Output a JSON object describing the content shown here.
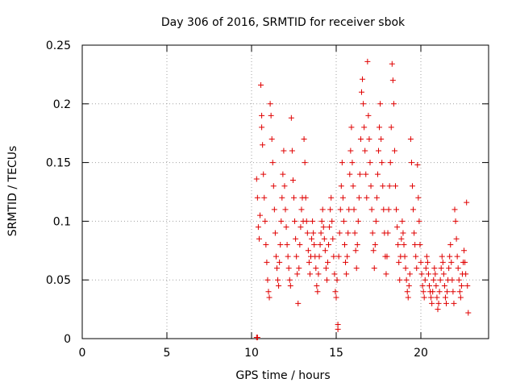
{
  "chart_data": {
    "type": "scatter",
    "title": "Day 306 of 2016, SRMTID for receiver sbok",
    "xlabel": "GPS time / hours",
    "ylabel": "SRMTID / TECUs",
    "xlim": [
      0,
      24
    ],
    "ylim": [
      0,
      0.25
    ],
    "xticks": [
      0,
      5,
      10,
      15,
      20
    ],
    "xtick_labels": [
      "0",
      "5",
      "10",
      "15",
      "20"
    ],
    "yticks": [
      0,
      0.05,
      0.1,
      0.15,
      0.2,
      0.25
    ],
    "ytick_labels": [
      "0",
      "0.05",
      "0.1",
      "0.15",
      "0.2",
      "0.25"
    ],
    "grid": true,
    "marker": "plus",
    "color": "#e00000",
    "series": [
      {
        "name": "SRMTID",
        "points": [
          [
            10.3,
            0.001
          ],
          [
            10.35,
            0.001
          ],
          [
            10.3,
            0.136
          ],
          [
            10.35,
            0.12
          ],
          [
            10.4,
            0.095
          ],
          [
            10.45,
            0.085
          ],
          [
            10.5,
            0.105
          ],
          [
            10.55,
            0.216
          ],
          [
            10.6,
            0.19
          ],
          [
            10.6,
            0.18
          ],
          [
            10.65,
            0.165
          ],
          [
            10.7,
            0.14
          ],
          [
            10.75,
            0.12
          ],
          [
            10.8,
            0.1
          ],
          [
            10.85,
            0.08
          ],
          [
            10.9,
            0.065
          ],
          [
            10.95,
            0.05
          ],
          [
            11.0,
            0.04
          ],
          [
            11.05,
            0.035
          ],
          [
            11.1,
            0.2
          ],
          [
            11.15,
            0.19
          ],
          [
            11.2,
            0.17
          ],
          [
            11.25,
            0.15
          ],
          [
            11.3,
            0.13
          ],
          [
            11.35,
            0.11
          ],
          [
            11.4,
            0.09
          ],
          [
            11.45,
            0.07
          ],
          [
            11.5,
            0.06
          ],
          [
            11.55,
            0.05
          ],
          [
            11.6,
            0.045
          ],
          [
            11.65,
            0.065
          ],
          [
            11.7,
            0.08
          ],
          [
            11.75,
            0.1
          ],
          [
            11.8,
            0.12
          ],
          [
            11.85,
            0.14
          ],
          [
            11.9,
            0.16
          ],
          [
            11.95,
            0.13
          ],
          [
            12.0,
            0.11
          ],
          [
            12.05,
            0.095
          ],
          [
            12.1,
            0.08
          ],
          [
            12.15,
            0.07
          ],
          [
            12.2,
            0.06
          ],
          [
            12.25,
            0.05
          ],
          [
            12.3,
            0.045
          ],
          [
            12.35,
            0.188
          ],
          [
            12.4,
            0.16
          ],
          [
            12.45,
            0.135
          ],
          [
            12.5,
            0.12
          ],
          [
            12.55,
            0.1
          ],
          [
            12.6,
            0.085
          ],
          [
            12.65,
            0.07
          ],
          [
            12.7,
            0.055
          ],
          [
            12.75,
            0.03
          ],
          [
            12.8,
            0.06
          ],
          [
            12.85,
            0.08
          ],
          [
            12.9,
            0.095
          ],
          [
            12.95,
            0.11
          ],
          [
            13.0,
            0.12
          ],
          [
            13.05,
            0.1
          ],
          [
            13.1,
            0.17
          ],
          [
            13.15,
            0.15
          ],
          [
            13.2,
            0.12
          ],
          [
            13.25,
            0.1
          ],
          [
            13.3,
            0.09
          ],
          [
            13.35,
            0.075
          ],
          [
            13.4,
            0.065
          ],
          [
            13.45,
            0.055
          ],
          [
            13.5,
            0.07
          ],
          [
            13.55,
            0.085
          ],
          [
            13.6,
            0.1
          ],
          [
            13.65,
            0.09
          ],
          [
            13.7,
            0.08
          ],
          [
            13.75,
            0.07
          ],
          [
            13.8,
            0.06
          ],
          [
            13.85,
            0.045
          ],
          [
            13.9,
            0.04
          ],
          [
            13.95,
            0.055
          ],
          [
            14.0,
            0.07
          ],
          [
            14.05,
            0.08
          ],
          [
            14.1,
            0.09
          ],
          [
            14.15,
            0.1
          ],
          [
            14.2,
            0.11
          ],
          [
            14.25,
            0.095
          ],
          [
            14.3,
            0.085
          ],
          [
            14.35,
            0.075
          ],
          [
            14.4,
            0.06
          ],
          [
            14.45,
            0.05
          ],
          [
            14.5,
            0.065
          ],
          [
            14.55,
            0.08
          ],
          [
            14.6,
            0.095
          ],
          [
            14.65,
            0.11
          ],
          [
            14.7,
            0.12
          ],
          [
            14.75,
            0.1
          ],
          [
            14.8,
            0.085
          ],
          [
            14.85,
            0.07
          ],
          [
            14.9,
            0.055
          ],
          [
            14.95,
            0.04
          ],
          [
            15.0,
            0.035
          ],
          [
            15.05,
            0.05
          ],
          [
            15.1,
            0.012
          ],
          [
            15.1,
            0.008
          ],
          [
            15.15,
            0.07
          ],
          [
            15.2,
            0.09
          ],
          [
            15.25,
            0.11
          ],
          [
            15.3,
            0.13
          ],
          [
            15.35,
            0.15
          ],
          [
            15.4,
            0.12
          ],
          [
            15.45,
            0.1
          ],
          [
            15.5,
            0.08
          ],
          [
            15.55,
            0.065
          ],
          [
            15.6,
            0.055
          ],
          [
            15.65,
            0.07
          ],
          [
            15.7,
            0.09
          ],
          [
            15.75,
            0.11
          ],
          [
            15.8,
            0.14
          ],
          [
            15.85,
            0.16
          ],
          [
            15.9,
            0.18
          ],
          [
            15.95,
            0.15
          ],
          [
            16.0,
            0.13
          ],
          [
            16.05,
            0.11
          ],
          [
            16.1,
            0.09
          ],
          [
            16.15,
            0.075
          ],
          [
            16.2,
            0.06
          ],
          [
            16.25,
            0.08
          ],
          [
            16.3,
            0.1
          ],
          [
            16.35,
            0.12
          ],
          [
            16.4,
            0.14
          ],
          [
            16.45,
            0.17
          ],
          [
            16.5,
            0.21
          ],
          [
            16.55,
            0.221
          ],
          [
            16.6,
            0.2
          ],
          [
            16.65,
            0.18
          ],
          [
            16.7,
            0.16
          ],
          [
            16.75,
            0.14
          ],
          [
            16.8,
            0.12
          ],
          [
            16.85,
            0.236
          ],
          [
            16.9,
            0.19
          ],
          [
            16.95,
            0.17
          ],
          [
            17.0,
            0.15
          ],
          [
            17.05,
            0.13
          ],
          [
            17.1,
            0.11
          ],
          [
            17.15,
            0.09
          ],
          [
            17.2,
            0.075
          ],
          [
            17.25,
            0.06
          ],
          [
            17.3,
            0.08
          ],
          [
            17.35,
            0.1
          ],
          [
            17.4,
            0.12
          ],
          [
            17.45,
            0.14
          ],
          [
            17.5,
            0.16
          ],
          [
            17.55,
            0.18
          ],
          [
            17.6,
            0.2
          ],
          [
            17.65,
            0.17
          ],
          [
            17.7,
            0.15
          ],
          [
            17.75,
            0.13
          ],
          [
            17.8,
            0.11
          ],
          [
            17.85,
            0.09
          ],
          [
            17.9,
            0.07
          ],
          [
            17.95,
            0.055
          ],
          [
            18.0,
            0.07
          ],
          [
            18.05,
            0.09
          ],
          [
            18.1,
            0.11
          ],
          [
            18.15,
            0.13
          ],
          [
            18.2,
            0.15
          ],
          [
            18.25,
            0.18
          ],
          [
            18.3,
            0.234
          ],
          [
            18.35,
            0.22
          ],
          [
            18.4,
            0.2
          ],
          [
            18.45,
            0.16
          ],
          [
            18.5,
            0.13
          ],
          [
            18.55,
            0.11
          ],
          [
            18.6,
            0.095
          ],
          [
            18.65,
            0.08
          ],
          [
            18.7,
            0.065
          ],
          [
            18.75,
            0.05
          ],
          [
            18.8,
            0.07
          ],
          [
            18.85,
            0.085
          ],
          [
            18.9,
            0.1
          ],
          [
            18.95,
            0.09
          ],
          [
            19.0,
            0.08
          ],
          [
            19.05,
            0.07
          ],
          [
            19.1,
            0.06
          ],
          [
            19.15,
            0.05
          ],
          [
            19.2,
            0.04
          ],
          [
            19.25,
            0.035
          ],
          [
            19.3,
            0.045
          ],
          [
            19.35,
            0.055
          ],
          [
            19.4,
            0.17
          ],
          [
            19.45,
            0.15
          ],
          [
            19.5,
            0.13
          ],
          [
            19.55,
            0.11
          ],
          [
            19.6,
            0.09
          ],
          [
            19.65,
            0.08
          ],
          [
            19.7,
            0.07
          ],
          [
            19.75,
            0.06
          ],
          [
            19.8,
            0.148
          ],
          [
            19.85,
            0.12
          ],
          [
            19.9,
            0.1
          ],
          [
            19.95,
            0.08
          ],
          [
            20.0,
            0.065
          ],
          [
            20.05,
            0.055
          ],
          [
            20.1,
            0.045
          ],
          [
            20.15,
            0.04
          ],
          [
            20.2,
            0.035
          ],
          [
            20.25,
            0.05
          ],
          [
            20.3,
            0.06
          ],
          [
            20.35,
            0.07
          ],
          [
            20.4,
            0.065
          ],
          [
            20.45,
            0.055
          ],
          [
            20.5,
            0.045
          ],
          [
            20.55,
            0.04
          ],
          [
            20.6,
            0.035
          ],
          [
            20.65,
            0.03
          ],
          [
            20.7,
            0.04
          ],
          [
            20.75,
            0.05
          ],
          [
            20.8,
            0.06
          ],
          [
            20.85,
            0.055
          ],
          [
            20.9,
            0.045
          ],
          [
            20.95,
            0.035
          ],
          [
            21.0,
            0.025
          ],
          [
            21.05,
            0.03
          ],
          [
            21.1,
            0.04
          ],
          [
            21.15,
            0.05
          ],
          [
            21.2,
            0.06
          ],
          [
            21.25,
            0.07
          ],
          [
            21.3,
            0.065
          ],
          [
            21.35,
            0.055
          ],
          [
            21.4,
            0.045
          ],
          [
            21.45,
            0.035
          ],
          [
            21.5,
            0.03
          ],
          [
            21.55,
            0.04
          ],
          [
            21.6,
            0.05
          ],
          [
            21.65,
            0.06
          ],
          [
            21.7,
            0.07
          ],
          [
            21.75,
            0.08
          ],
          [
            21.8,
            0.065
          ],
          [
            21.85,
            0.05
          ],
          [
            21.9,
            0.04
          ],
          [
            21.95,
            0.03
          ],
          [
            22.0,
            0.11
          ],
          [
            22.05,
            0.1
          ],
          [
            22.1,
            0.085
          ],
          [
            22.15,
            0.07
          ],
          [
            22.2,
            0.06
          ],
          [
            22.25,
            0.05
          ],
          [
            22.3,
            0.04
          ],
          [
            22.35,
            0.035
          ],
          [
            22.4,
            0.045
          ],
          [
            22.45,
            0.055
          ],
          [
            22.5,
            0.065
          ],
          [
            22.55,
            0.075
          ],
          [
            22.6,
            0.065
          ],
          [
            22.65,
            0.055
          ],
          [
            22.7,
            0.116
          ],
          [
            22.75,
            0.045
          ],
          [
            22.8,
            0.022
          ]
        ]
      }
    ]
  }
}
